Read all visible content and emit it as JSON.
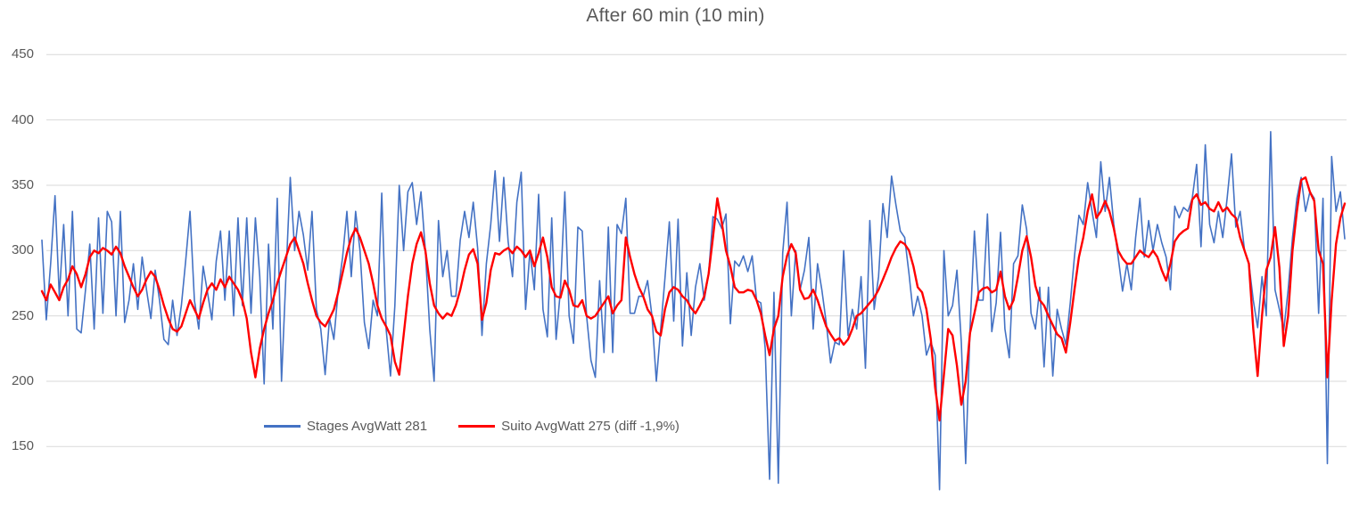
{
  "chart_data": {
    "type": "line",
    "title": "After 60 min (10 min)",
    "xlabel": "",
    "ylabel": "",
    "ylim": [
      100,
      450
    ],
    "yticks": [
      150,
      200,
      250,
      300,
      350,
      400,
      450
    ],
    "grid": "horizontal",
    "gridline_color": "#D9D9D9",
    "text_color": "#595959",
    "legend_position": "bottom-inside-left-of-center",
    "x_axis_labels_visible": false,
    "x": "sample index 0-299 (time over 10 min window)",
    "series": [
      {
        "name": "Stages AvgWatt 281",
        "color": "#4472C4",
        "stroke_width": 1.6,
        "values": [
          308,
          247,
          290,
          342,
          265,
          320,
          250,
          330,
          240,
          237,
          270,
          305,
          240,
          325,
          252,
          330,
          322,
          250,
          330,
          245,
          262,
          290,
          255,
          295,
          270,
          248,
          285,
          262,
          232,
          228,
          262,
          235,
          258,
          292,
          330,
          262,
          240,
          288,
          268,
          247,
          292,
          315,
          262,
          315,
          250,
          325,
          258,
          325,
          252,
          325,
          280,
          198,
          305,
          240,
          340,
          200,
          280,
          356,
          300,
          330,
          312,
          285,
          330,
          255,
          240,
          205,
          248,
          232,
          270,
          295,
          330,
          280,
          330,
          300,
          245,
          225,
          262,
          250,
          344,
          240,
          204,
          258,
          350,
          300,
          345,
          352,
          320,
          345,
          300,
          240,
          200,
          323,
          280,
          300,
          265,
          265,
          308,
          330,
          310,
          337,
          302,
          235,
          290,
          320,
          361,
          307,
          356,
          307,
          280,
          337,
          360,
          255,
          300,
          270,
          343,
          255,
          234,
          325,
          232,
          270,
          345,
          250,
          229,
          318,
          315,
          250,
          216,
          203,
          277,
          222,
          318,
          222,
          320,
          313,
          340,
          252,
          252,
          265,
          265,
          277,
          250,
          200,
          240,
          279,
          322,
          246,
          324,
          227,
          283,
          235,
          272,
          290,
          262,
          282,
          326,
          324,
          317,
          328,
          244,
          292,
          288,
          296,
          284,
          296,
          262,
          260,
          225,
          125,
          268,
          122,
          298,
          337,
          250,
          300,
          270,
          285,
          310,
          240,
          290,
          270,
          245,
          214,
          230,
          228,
          300,
          235,
          255,
          240,
          280,
          210,
          323,
          255,
          280,
          336,
          310,
          357,
          335,
          315,
          310,
          282,
          250,
          265,
          250,
          220,
          230,
          220,
          117,
          300,
          250,
          258,
          285,
          230,
          137,
          240,
          315,
          262,
          262,
          328,
          238,
          260,
          314,
          240,
          218,
          290,
          296,
          335,
          316,
          252,
          240,
          272,
          211,
          272,
          204,
          255,
          240,
          228,
          260,
          297,
          327,
          320,
          352,
          330,
          310,
          368,
          330,
          356,
          320,
          295,
          269,
          290,
          270,
          310,
          340,
          295,
          323,
          300,
          320,
          306,
          295,
          270,
          334,
          325,
          333,
          330,
          340,
          366,
          303,
          381,
          320,
          306,
          330,
          310,
          340,
          374,
          318,
          330,
          300,
          290,
          262,
          241,
          280,
          250,
          391,
          270,
          255,
          239,
          270,
          310,
          340,
          356,
          330,
          345,
          340,
          252,
          340,
          137,
          372,
          330,
          345,
          309
        ]
      },
      {
        "name": "Suito AvgWatt 275 (diff -1,9%)",
        "color": "#FF0000",
        "stroke_width": 2.4,
        "values": [
          269,
          262,
          274,
          268,
          262,
          272,
          278,
          288,
          282,
          272,
          282,
          295,
          300,
          298,
          302,
          300,
          297,
          303,
          298,
          288,
          280,
          272,
          265,
          270,
          278,
          284,
          280,
          270,
          258,
          248,
          240,
          238,
          242,
          252,
          262,
          255,
          248,
          260,
          270,
          275,
          270,
          278,
          272,
          280,
          275,
          270,
          262,
          248,
          222,
          203,
          225,
          240,
          252,
          262,
          275,
          285,
          295,
          305,
          310,
          300,
          290,
          275,
          262,
          250,
          245,
          242,
          248,
          255,
          268,
          283,
          298,
          310,
          317,
          310,
          300,
          290,
          275,
          258,
          248,
          242,
          235,
          215,
          205,
          235,
          265,
          290,
          305,
          314,
          300,
          275,
          258,
          252,
          248,
          252,
          250,
          258,
          270,
          285,
          297,
          301,
          290,
          247,
          260,
          285,
          298,
          297,
          300,
          302,
          298,
          303,
          300,
          295,
          300,
          288,
          298,
          310,
          295,
          272,
          265,
          264,
          277,
          270,
          258,
          257,
          262,
          250,
          248,
          250,
          255,
          260,
          265,
          252,
          258,
          262,
          310,
          295,
          282,
          272,
          265,
          255,
          250,
          238,
          235,
          255,
          268,
          272,
          270,
          265,
          262,
          256,
          252,
          258,
          265,
          282,
          310,
          340,
          322,
          300,
          288,
          272,
          268,
          268,
          270,
          269,
          262,
          252,
          235,
          220,
          240,
          250,
          280,
          296,
          305,
          298,
          270,
          263,
          264,
          270,
          262,
          252,
          242,
          236,
          231,
          233,
          228,
          232,
          240,
          250,
          252,
          256,
          260,
          264,
          270,
          278,
          286,
          295,
          302,
          307,
          305,
          300,
          288,
          272,
          268,
          255,
          232,
          195,
          170,
          205,
          240,
          235,
          212,
          182,
          200,
          237,
          252,
          268,
          271,
          272,
          268,
          270,
          284,
          265,
          255,
          262,
          280,
          300,
          311,
          295,
          273,
          262,
          258,
          250,
          243,
          236,
          233,
          222,
          245,
          271,
          295,
          310,
          330,
          343,
          325,
          330,
          338,
          330,
          317,
          300,
          294,
          290,
          290,
          295,
          300,
          297,
          295,
          300,
          295,
          285,
          277,
          290,
          307,
          312,
          315,
          317,
          339,
          343,
          335,
          337,
          332,
          330,
          337,
          330,
          333,
          328,
          325,
          310,
          300,
          290,
          240,
          204,
          250,
          285,
          295,
          318,
          287,
          227,
          250,
          300,
          330,
          354,
          356,
          345,
          338,
          300,
          290,
          203,
          262,
          305,
          325,
          336
        ]
      }
    ]
  }
}
